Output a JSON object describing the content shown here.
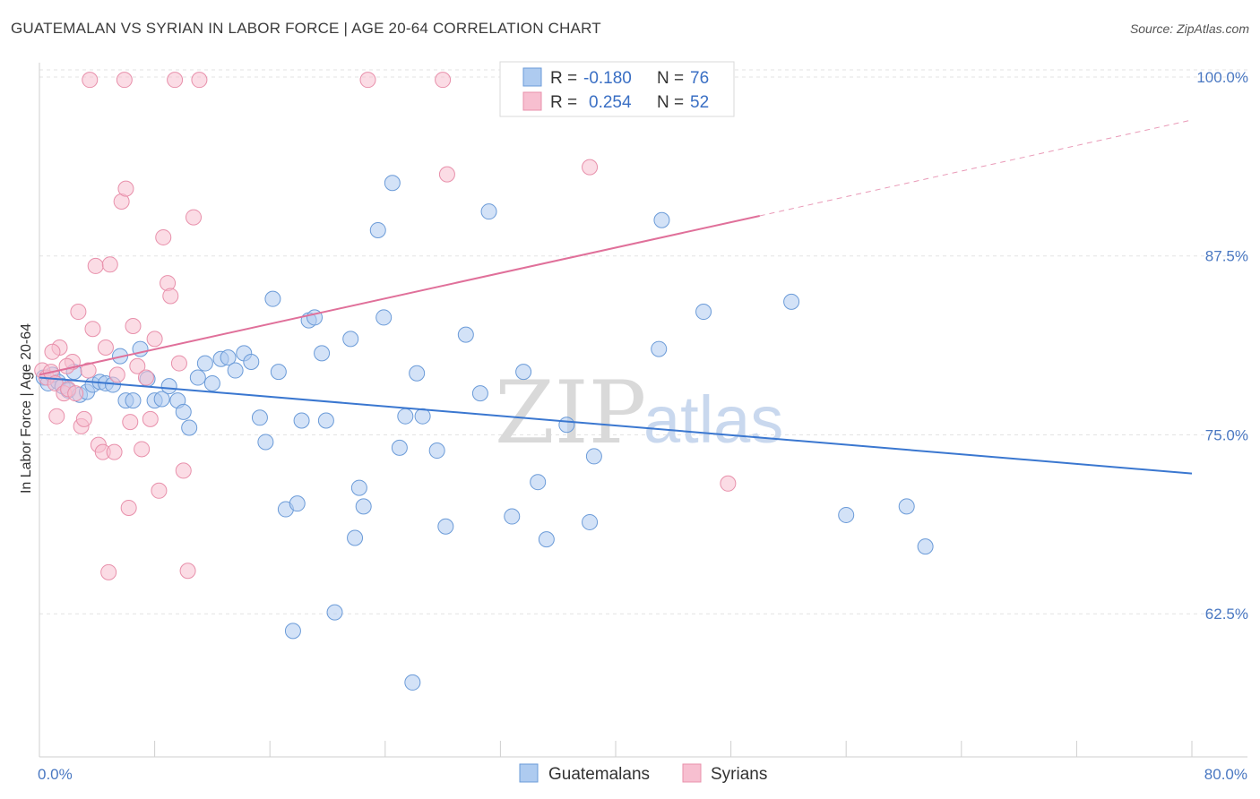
{
  "header": {
    "title": "GUATEMALAN VS SYRIAN IN LABOR FORCE | AGE 20-64 CORRELATION CHART",
    "source": "Source: ZipAtlas.com"
  },
  "colors": {
    "blue_fill": "#aecbf0",
    "blue_stroke": "#6b9bd8",
    "blue_line": "#3a77d0",
    "pink_fill": "#f7bfd0",
    "pink_stroke": "#e890ab",
    "pink_line": "#e0709a",
    "grid": "#e3e3e3",
    "tick_text": "#4a78c2"
  },
  "chart_data": {
    "type": "scatter",
    "title": "GUATEMALAN VS SYRIAN IN LABOR FORCE | AGE 20-64 CORRELATION CHART",
    "xlabel": "",
    "ylabel": "In Labor Force | Age 20-64",
    "xlim": [
      0,
      80
    ],
    "ylim": [
      52.5,
      101.0
    ],
    "x_tick_labels": [
      {
        "value": 0,
        "label": "0.0%"
      },
      {
        "value": 80,
        "label": "80.0%"
      }
    ],
    "y_tick_labels": [
      {
        "value": 100,
        "label": "100.0%"
      },
      {
        "value": 87.5,
        "label": "87.5%"
      },
      {
        "value": 75,
        "label": "75.0%"
      },
      {
        "value": 62.5,
        "label": "62.5%"
      }
    ],
    "grid": true,
    "legend_position": "top-center",
    "watermark": {
      "zip": "ZIP",
      "atlas": "atlas"
    },
    "legend": [
      {
        "r_label": "R =",
        "r_value": "-0.180",
        "n_label": "N =",
        "n_value": "76"
      },
      {
        "r_label": "R =",
        "r_value": "0.254",
        "n_label": "N =",
        "n_value": "52"
      }
    ],
    "series": [
      {
        "name": "Guatemalans",
        "color": "#6b9bd8",
        "trend": {
          "x0": 0,
          "y0": 79.0,
          "x1": 80,
          "y1": 72.3
        },
        "points": [
          [
            0.3,
            79.0
          ],
          [
            0.6,
            78.6
          ],
          [
            0.9,
            79.2
          ],
          [
            1.3,
            78.7
          ],
          [
            1.6,
            78.4
          ],
          [
            2.0,
            78.1
          ],
          [
            2.4,
            79.4
          ],
          [
            2.8,
            77.8
          ],
          [
            3.3,
            78.0
          ],
          [
            3.7,
            78.5
          ],
          [
            4.2,
            78.7
          ],
          [
            4.6,
            78.6
          ],
          [
            5.1,
            78.5
          ],
          [
            5.6,
            80.5
          ],
          [
            6.0,
            77.4
          ],
          [
            6.5,
            77.4
          ],
          [
            7.0,
            81.0
          ],
          [
            7.5,
            78.9
          ],
          [
            8.0,
            77.4
          ],
          [
            8.5,
            77.5
          ],
          [
            9.0,
            78.4
          ],
          [
            9.6,
            77.4
          ],
          [
            10.0,
            76.6
          ],
          [
            10.4,
            75.5
          ],
          [
            11.0,
            79.0
          ],
          [
            11.5,
            80.0
          ],
          [
            12.0,
            78.6
          ],
          [
            12.6,
            80.3
          ],
          [
            13.1,
            80.4
          ],
          [
            13.6,
            79.5
          ],
          [
            14.2,
            80.7
          ],
          [
            14.7,
            80.1
          ],
          [
            15.3,
            76.2
          ],
          [
            15.7,
            74.5
          ],
          [
            16.2,
            84.5
          ],
          [
            16.6,
            79.4
          ],
          [
            17.1,
            69.8
          ],
          [
            17.6,
            61.3
          ],
          [
            17.9,
            70.2
          ],
          [
            18.2,
            76.0
          ],
          [
            18.7,
            83.0
          ],
          [
            19.1,
            83.2
          ],
          [
            19.6,
            80.7
          ],
          [
            19.9,
            76.0
          ],
          [
            20.5,
            62.6
          ],
          [
            21.6,
            81.7
          ],
          [
            21.9,
            67.8
          ],
          [
            22.2,
            71.3
          ],
          [
            22.5,
            70.0
          ],
          [
            23.5,
            89.3
          ],
          [
            23.9,
            83.2
          ],
          [
            24.5,
            92.6
          ],
          [
            25.0,
            74.1
          ],
          [
            25.4,
            76.3
          ],
          [
            25.9,
            57.7
          ],
          [
            26.2,
            79.3
          ],
          [
            26.6,
            76.3
          ],
          [
            27.6,
            73.9
          ],
          [
            28.2,
            68.6
          ],
          [
            29.6,
            82.0
          ],
          [
            30.6,
            77.9
          ],
          [
            31.2,
            90.6
          ],
          [
            32.8,
            69.3
          ],
          [
            33.6,
            79.4
          ],
          [
            34.6,
            71.7
          ],
          [
            35.2,
            67.7
          ],
          [
            36.6,
            75.7
          ],
          [
            38.2,
            68.9
          ],
          [
            38.5,
            73.5
          ],
          [
            43.0,
            81.0
          ],
          [
            43.2,
            90.0
          ],
          [
            46.1,
            83.6
          ],
          [
            52.2,
            84.3
          ],
          [
            56.0,
            69.4
          ],
          [
            60.2,
            70.0
          ],
          [
            61.5,
            67.2
          ]
        ]
      },
      {
        "name": "Syrians",
        "color": "#e890ab",
        "trend": {
          "x0": 0,
          "y0": 79.2,
          "x1": 50,
          "y1": 90.3,
          "dash_x1": 80,
          "dash_y1": 97.0
        },
        "points": [
          [
            0.2,
            79.5
          ],
          [
            0.5,
            79.0
          ],
          [
            0.8,
            79.4
          ],
          [
            1.1,
            78.6
          ],
          [
            1.4,
            81.1
          ],
          [
            1.7,
            77.9
          ],
          [
            2.0,
            78.2
          ],
          [
            2.3,
            80.1
          ],
          [
            2.7,
            83.6
          ],
          [
            2.9,
            75.6
          ],
          [
            3.1,
            76.1
          ],
          [
            3.4,
            79.5
          ],
          [
            3.7,
            82.4
          ],
          [
            3.9,
            86.8
          ],
          [
            4.1,
            74.3
          ],
          [
            4.4,
            73.8
          ],
          [
            4.6,
            81.1
          ],
          [
            4.9,
            86.9
          ],
          [
            5.2,
            73.8
          ],
          [
            5.4,
            79.2
          ],
          [
            5.7,
            91.3
          ],
          [
            6.0,
            92.2
          ],
          [
            6.2,
            69.9
          ],
          [
            6.5,
            82.6
          ],
          [
            6.8,
            79.8
          ],
          [
            7.1,
            74.0
          ],
          [
            7.4,
            79.0
          ],
          [
            7.7,
            76.1
          ],
          [
            8.0,
            81.7
          ],
          [
            8.3,
            71.1
          ],
          [
            8.6,
            88.8
          ],
          [
            8.9,
            85.6
          ],
          [
            9.1,
            84.7
          ],
          [
            9.4,
            99.8
          ],
          [
            9.7,
            80.0
          ],
          [
            10.0,
            72.5
          ],
          [
            10.3,
            65.5
          ],
          [
            10.7,
            90.2
          ],
          [
            11.1,
            99.8
          ],
          [
            5.9,
            99.8
          ],
          [
            3.5,
            99.8
          ],
          [
            22.8,
            99.8
          ],
          [
            28.0,
            99.8
          ],
          [
            28.3,
            93.2
          ],
          [
            38.2,
            93.7
          ],
          [
            47.8,
            71.6
          ],
          [
            4.8,
            65.4
          ],
          [
            1.2,
            76.3
          ],
          [
            2.5,
            77.9
          ],
          [
            0.9,
            80.8
          ],
          [
            6.3,
            75.9
          ],
          [
            1.9,
            79.8
          ]
        ]
      }
    ]
  }
}
